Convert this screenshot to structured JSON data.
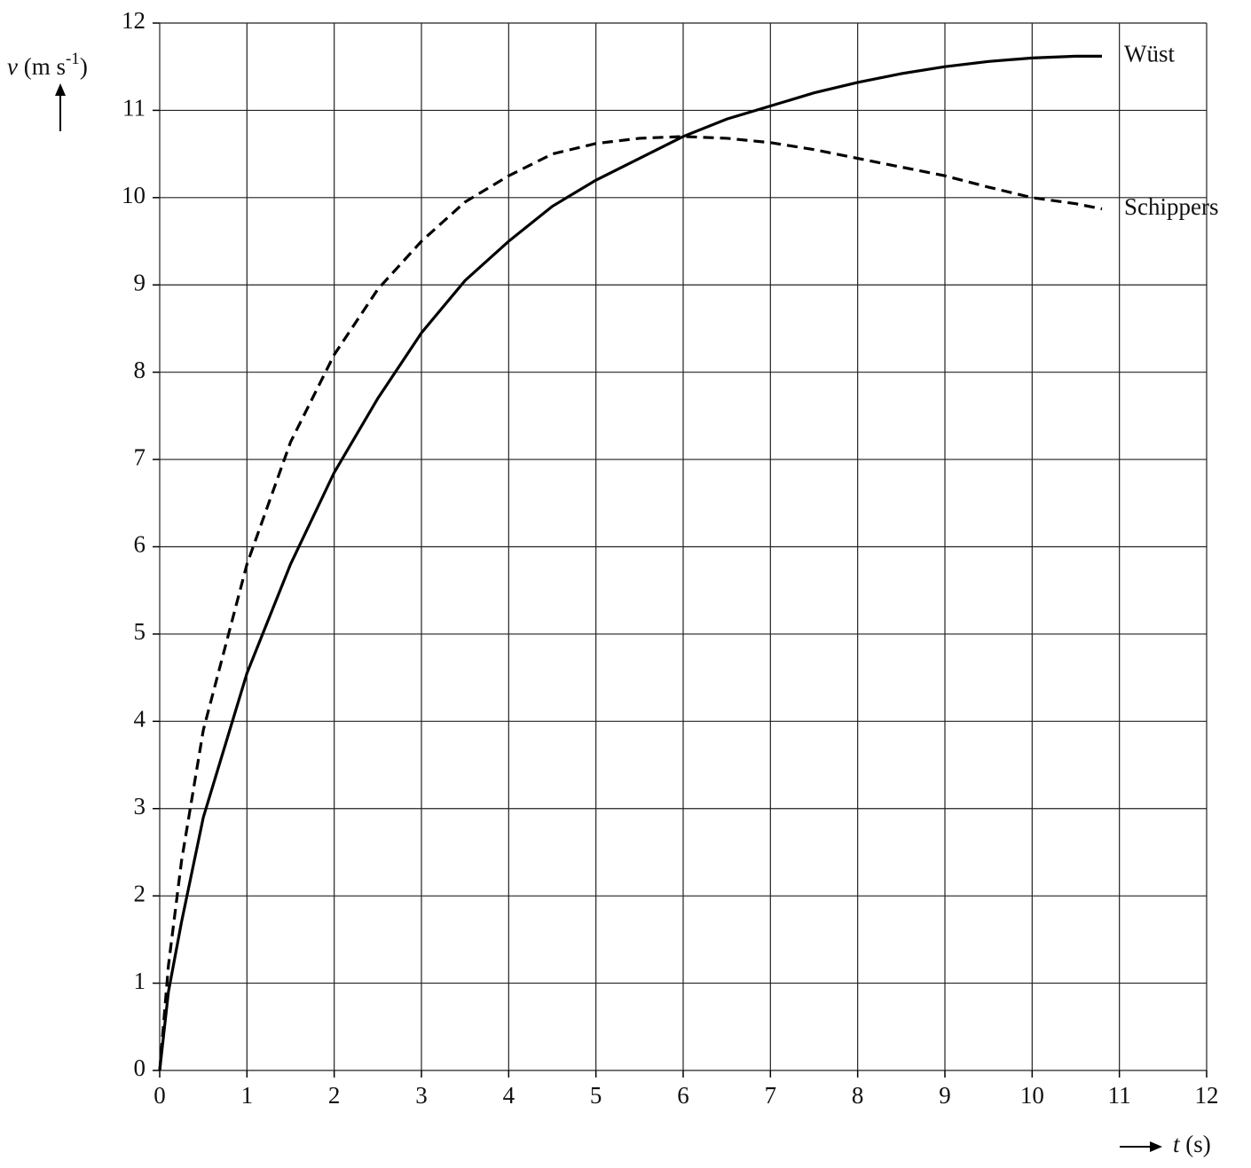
{
  "chart_data": {
    "type": "line",
    "ylabel": {
      "symbol": "v",
      "unit": "(m s",
      "unit_exponent": "-1",
      "unit_end": ")"
    },
    "xlabel": {
      "symbol": "t",
      "unit": "(s)"
    },
    "x": [
      0,
      0.1,
      0.25,
      0.5,
      1,
      1.5,
      2,
      2.5,
      3,
      3.5,
      4,
      4.5,
      5,
      5.5,
      6,
      6.5,
      7,
      7.5,
      8,
      8.5,
      9,
      9.5,
      10,
      10.5,
      10.8
    ],
    "series": [
      {
        "name": "Wüst",
        "color": "#000000",
        "style": "solid",
        "values": [
          0,
          0.9,
          1.7,
          2.9,
          4.55,
          5.8,
          6.85,
          7.7,
          8.45,
          9.05,
          9.5,
          9.9,
          10.2,
          10.45,
          10.7,
          10.9,
          11.05,
          11.2,
          11.32,
          11.42,
          11.5,
          11.56,
          11.6,
          11.62,
          11.62
        ]
      },
      {
        "name": "Schippers",
        "color": "#000000",
        "style": "dashed",
        "values": [
          0,
          1.2,
          2.4,
          3.9,
          5.8,
          7.2,
          8.2,
          8.95,
          9.5,
          9.95,
          10.25,
          10.5,
          10.62,
          10.68,
          10.7,
          10.68,
          10.63,
          10.55,
          10.45,
          10.35,
          10.25,
          10.12,
          10.0,
          9.93,
          9.87
        ]
      }
    ],
    "xlim": [
      0,
      12
    ],
    "ylim": [
      0,
      12
    ],
    "xticks": [
      0,
      1,
      2,
      3,
      4,
      5,
      6,
      7,
      8,
      9,
      10,
      11,
      12
    ],
    "yticks": [
      0,
      1,
      2,
      3,
      4,
      5,
      6,
      7,
      8,
      9,
      10,
      11,
      12
    ],
    "grid": true
  }
}
